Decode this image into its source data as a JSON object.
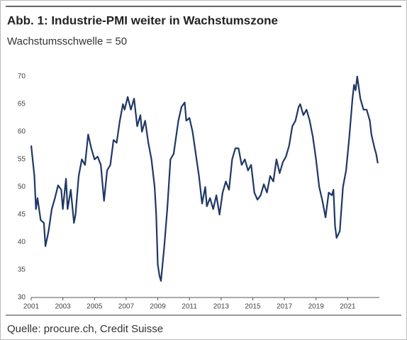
{
  "chart_data": {
    "type": "line",
    "title": "Abb. 1: Industrie-PMI weiter in Wachstumszone",
    "subtitle": "Wachstumsschwelle = 50",
    "source": "Quelle: procure.ch, Credit Suisse",
    "x": [
      2001.0,
      2001.2,
      2001.3,
      2001.4,
      2001.6,
      2001.8,
      2001.9,
      2002.1,
      2002.3,
      2002.5,
      2002.7,
      2002.9,
      2003.0,
      2003.2,
      2003.3,
      2003.5,
      2003.7,
      2003.8,
      2004.0,
      2004.2,
      2004.4,
      2004.6,
      2004.8,
      2005.0,
      2005.2,
      2005.4,
      2005.6,
      2005.8,
      2006.0,
      2006.2,
      2006.4,
      2006.6,
      2006.8,
      2006.9,
      2007.1,
      2007.3,
      2007.5,
      2007.7,
      2007.9,
      2008.0,
      2008.2,
      2008.4,
      2008.6,
      2008.8,
      2008.9,
      2009.0,
      2009.1,
      2009.2,
      2009.4,
      2009.6,
      2009.8,
      2010.0,
      2010.3,
      2010.5,
      2010.7,
      2010.8,
      2011.0,
      2011.2,
      2011.4,
      2011.6,
      2011.8,
      2012.0,
      2012.1,
      2012.3,
      2012.5,
      2012.7,
      2012.9,
      2013.1,
      2013.3,
      2013.5,
      2013.7,
      2013.9,
      2014.1,
      2014.3,
      2014.5,
      2014.7,
      2014.9,
      2015.1,
      2015.3,
      2015.5,
      2015.7,
      2015.9,
      2016.1,
      2016.3,
      2016.5,
      2016.7,
      2016.9,
      2017.1,
      2017.3,
      2017.5,
      2017.7,
      2017.9,
      2018.0,
      2018.2,
      2018.4,
      2018.6,
      2018.8,
      2019.0,
      2019.2,
      2019.4,
      2019.6,
      2019.8,
      2020.0,
      2020.1,
      2020.2,
      2020.3,
      2020.5,
      2020.7,
      2020.9,
      2021.1,
      2021.3,
      2021.4,
      2021.5,
      2021.6,
      2021.8,
      2022.0,
      2022.2,
      2022.4,
      2022.5,
      2022.7,
      2022.8,
      2022.9
    ],
    "series": [
      {
        "color": "#1f3864",
        "values": [
          57.5,
          52,
          46,
          48,
          44,
          43.5,
          39.3,
          42,
          46,
          48,
          50.3,
          49.5,
          46,
          51.5,
          46,
          49.5,
          43.5,
          45,
          52,
          55,
          54,
          59.5,
          57,
          55,
          55.5,
          54,
          47.5,
          53,
          54,
          58.5,
          58,
          62,
          65,
          64,
          66.3,
          64,
          66,
          61,
          63,
          60,
          62,
          58,
          55,
          50,
          45,
          36,
          34,
          33,
          39,
          46,
          55,
          56,
          62,
          64.5,
          65.3,
          62,
          62.5,
          60,
          56,
          52,
          47,
          50,
          46.5,
          48,
          46,
          48.5,
          45,
          49,
          51,
          49.5,
          55,
          57,
          57,
          54,
          55,
          53,
          54,
          49,
          47.7,
          48.5,
          50.5,
          49,
          52,
          51,
          55,
          52.5,
          54.5,
          55.5,
          57.5,
          61,
          62,
          64.5,
          65,
          63,
          64,
          62,
          59,
          55,
          50,
          47.5,
          44.5,
          49,
          48.5,
          49.5,
          43,
          40.8,
          42,
          50,
          53,
          59,
          66,
          68.5,
          67.5,
          70,
          66,
          64,
          64,
          62,
          59.5,
          57,
          56,
          54.3
        ]
      }
    ],
    "xlim": [
      2001,
      2023
    ],
    "ylim": [
      30,
      70
    ],
    "xticks": [
      2001,
      2003,
      2005,
      2007,
      2009,
      2011,
      2013,
      2015,
      2017,
      2019,
      2021
    ],
    "yticks": [
      30,
      35,
      40,
      45,
      50,
      55,
      60,
      65,
      70
    ]
  }
}
